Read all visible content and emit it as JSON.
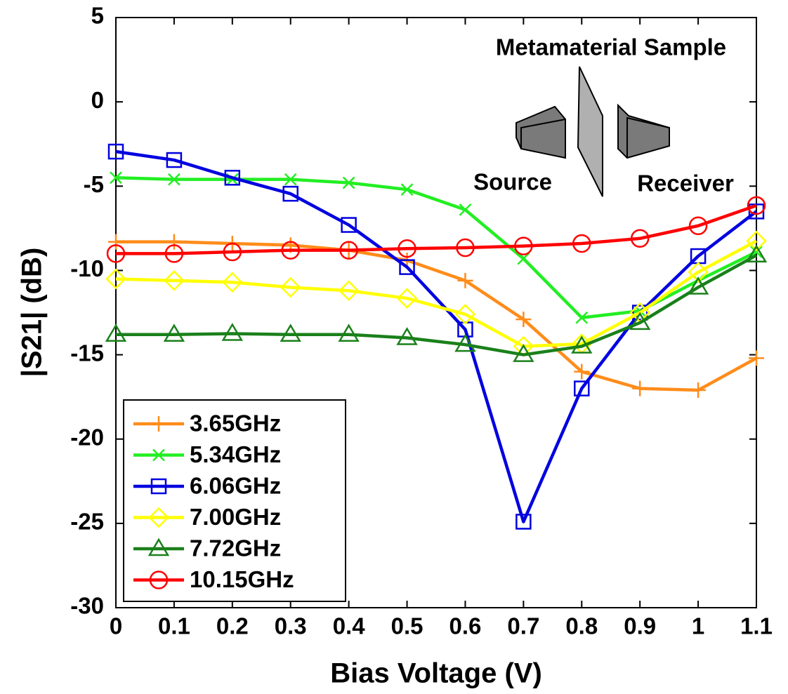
{
  "chart_data": {
    "type": "line",
    "xlabel": "Bias Voltage (V)",
    "ylabel": "|S21| (dB)",
    "x": [
      0,
      0.1,
      0.2,
      0.3,
      0.4,
      0.5,
      0.6,
      0.7,
      0.8,
      0.9,
      1,
      1.1
    ],
    "xlim": [
      0,
      1.1
    ],
    "xticks": [
      0,
      0.1,
      0.2,
      0.3,
      0.4,
      0.5,
      0.6,
      0.7,
      0.8,
      0.9,
      1,
      1.1
    ],
    "ylim": [
      -30,
      5
    ],
    "yticks": [
      -30,
      -25,
      -20,
      -15,
      -10,
      -5,
      0,
      5
    ],
    "grid": false,
    "legend": "lower left",
    "annotations": [
      "Metamaterial Sample",
      "Source",
      "Receiver"
    ],
    "series": [
      {
        "name": "3.65GHz",
        "color": "#ff8c1a",
        "marker": "plus",
        "values": [
          -8.3,
          -8.3,
          -8.4,
          -8.5,
          -8.8,
          -9.4,
          -10.6,
          -12.9,
          -16.0,
          -17.0,
          -17.1,
          -15.2
        ]
      },
      {
        "name": "5.34GHz",
        "color": "#22ee22",
        "marker": "x",
        "values": [
          -4.5,
          -4.6,
          -4.6,
          -4.6,
          -4.8,
          -5.2,
          -6.4,
          -9.3,
          -12.8,
          -12.4,
          -10.6,
          -8.9
        ]
      },
      {
        "name": "6.06GHz",
        "color": "#0000e0",
        "marker": "square",
        "values": [
          -2.95,
          -3.45,
          -4.5,
          -5.45,
          -7.3,
          -9.8,
          -13.5,
          -24.9,
          -17.0,
          -12.5,
          -9.15,
          -6.5
        ]
      },
      {
        "name": "7.00GHz",
        "color": "#ffff00",
        "marker": "diamond",
        "values": [
          -10.5,
          -10.6,
          -10.7,
          -11.0,
          -11.2,
          -11.65,
          -12.6,
          -14.5,
          -14.35,
          -12.5,
          -10.1,
          -8.25
        ]
      },
      {
        "name": "7.72GHz",
        "color": "#1a801a",
        "marker": "triangle",
        "values": [
          -13.8,
          -13.8,
          -13.75,
          -13.8,
          -13.8,
          -14.0,
          -14.4,
          -15.0,
          -14.5,
          -13.1,
          -11.0,
          -9.1
        ]
      },
      {
        "name": "10.15GHz",
        "color": "#ff0000",
        "marker": "circle",
        "values": [
          -9.0,
          -9.0,
          -8.9,
          -8.8,
          -8.8,
          -8.7,
          -8.65,
          -8.55,
          -8.4,
          -8.1,
          -7.35,
          -6.15
        ]
      }
    ]
  }
}
